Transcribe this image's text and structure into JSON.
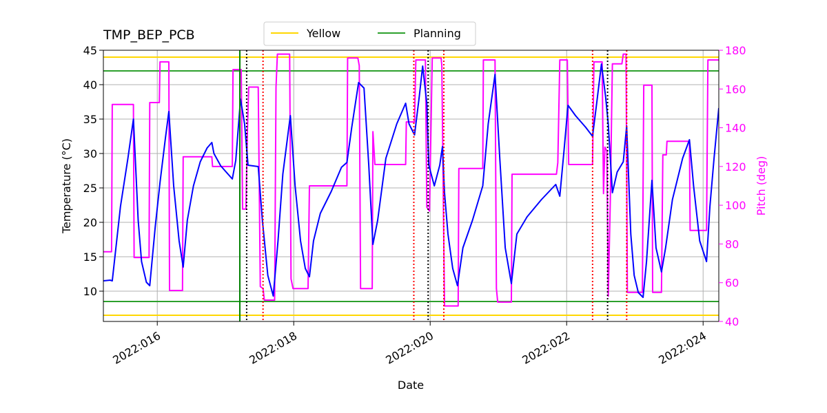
{
  "chart_data": {
    "type": "line",
    "title": "TMP_BEP_PCB",
    "xlabel": "Date",
    "ylabel": "Temperature (°C)",
    "y2label": "Pitch (deg)",
    "y2color": "#ff00ff",
    "xlim": [
      15.21,
      24.23
    ],
    "xticks": [
      {
        "value": 16,
        "label": "2022:016"
      },
      {
        "value": 18,
        "label": "2022:018"
      },
      {
        "value": 20,
        "label": "2022:020"
      },
      {
        "value": 22,
        "label": "2022:022"
      },
      {
        "value": 24,
        "label": "2022:024"
      }
    ],
    "ylim": [
      5.6,
      45
    ],
    "yticks": [
      10,
      15,
      20,
      25,
      30,
      35,
      40,
      45
    ],
    "y2lim": [
      40,
      180
    ],
    "y2ticks": [
      40,
      60,
      80,
      100,
      120,
      140,
      160,
      180
    ],
    "grid": true,
    "legend": "upper center",
    "limits": [
      {
        "name": "Yellow",
        "color": "#ffd700",
        "values": [
          6.5,
          44
        ]
      },
      {
        "name": "Planning",
        "color": "#2ca02c",
        "values": [
          8.5,
          42
        ]
      }
    ],
    "vlines": [
      {
        "x": 17.21,
        "color": "#008000",
        "style": "solid"
      },
      {
        "x": 17.31,
        "color": "#000000",
        "style": "dotted"
      },
      {
        "x": 19.97,
        "color": "#000000",
        "style": "dotted"
      },
      {
        "x": 22.6,
        "color": "#000000",
        "style": "dotted"
      },
      {
        "x": 17.55,
        "color": "#ff0000",
        "style": "dotted"
      },
      {
        "x": 19.76,
        "color": "#ff0000",
        "style": "dotted"
      },
      {
        "x": 20.2,
        "color": "#ff0000",
        "style": "dotted"
      },
      {
        "x": 22.38,
        "color": "#ff0000",
        "style": "dotted"
      },
      {
        "x": 22.88,
        "color": "#ff0000",
        "style": "dotted"
      }
    ],
    "series": [
      {
        "color": "#ff00ff",
        "axis": "y2",
        "x": [
          15.21,
          15.33,
          15.34,
          15.65,
          15.66,
          15.88,
          15.89,
          16.03,
          16.04,
          16.17,
          16.18,
          16.37,
          16.38,
          16.8,
          16.81,
          17.1,
          17.11,
          17.23,
          17.25,
          17.3,
          17.32,
          17.34,
          17.48,
          17.51,
          17.55,
          17.57,
          17.72,
          17.74,
          17.76,
          17.94,
          17.96,
          17.99,
          18.21,
          18.23,
          18.78,
          18.79,
          18.94,
          18.96,
          18.98,
          19.15,
          19.16,
          19.19,
          19.64,
          19.65,
          19.77,
          19.79,
          19.93,
          19.95,
          19.99,
          20.03,
          20.16,
          20.17,
          20.21,
          20.41,
          20.42,
          20.77,
          20.78,
          20.95,
          20.97,
          20.99,
          21.19,
          21.2,
          21.85,
          21.87,
          21.9,
          22.01,
          22.03,
          22.38,
          22.4,
          22.52,
          22.54,
          22.56,
          22.59,
          22.61,
          22.64,
          22.67,
          22.81,
          22.83,
          22.87,
          22.89,
          23.11,
          23.13,
          23.25,
          23.26,
          23.39,
          23.41,
          23.46,
          23.47,
          23.8,
          23.81,
          24.05,
          24.07,
          24.23
        ],
        "values": [
          76,
          76,
          152,
          152,
          73,
          73,
          153,
          153,
          174,
          174,
          56,
          56,
          125,
          125,
          120,
          120,
          170,
          170,
          98,
          98,
          137,
          161,
          161,
          58,
          57,
          51,
          51,
          161,
          178,
          178,
          62,
          57,
          57,
          110,
          110,
          176,
          176,
          172,
          57,
          57,
          138,
          121,
          121,
          143,
          143,
          175,
          175,
          99,
          97,
          176,
          176,
          172,
          48,
          48,
          119,
          119,
          175,
          175,
          57,
          50,
          50,
          116,
          116,
          122,
          175,
          175,
          121,
          121,
          174,
          174,
          106,
          130,
          128,
          53,
          103,
          173,
          173,
          178,
          178,
          55,
          55,
          162,
          162,
          55,
          55,
          126,
          126,
          133,
          133,
          87,
          87,
          175,
          175
        ]
      },
      {
        "color": "#0000ff",
        "x": [
          15.21,
          15.31,
          15.34,
          15.46,
          15.57,
          15.65,
          15.72,
          15.77,
          15.84,
          15.89,
          15.97,
          16.04,
          16.12,
          16.17,
          16.24,
          16.32,
          16.38,
          16.44,
          16.53,
          16.63,
          16.73,
          16.8,
          16.83,
          16.93,
          17.1,
          17.15,
          17.22,
          17.28,
          17.33,
          17.48,
          17.54,
          17.62,
          17.7,
          17.77,
          17.84,
          17.95,
          18.02,
          18.1,
          18.17,
          18.23,
          18.29,
          18.39,
          18.55,
          18.7,
          18.78,
          18.85,
          18.95,
          19.03,
          19.1,
          19.16,
          19.23,
          19.35,
          19.51,
          19.64,
          19.69,
          19.77,
          19.84,
          19.89,
          19.95,
          19.98,
          20.06,
          20.14,
          20.18,
          20.21,
          20.26,
          20.33,
          20.4,
          20.48,
          20.62,
          20.77,
          20.85,
          20.95,
          21.02,
          21.1,
          21.19,
          21.27,
          21.42,
          21.63,
          21.84,
          21.9,
          21.96,
          22.02,
          22.13,
          22.28,
          22.38,
          22.44,
          22.51,
          22.57,
          22.61,
          22.67,
          22.74,
          22.83,
          22.88,
          22.94,
          22.99,
          23.05,
          23.12,
          23.17,
          23.25,
          23.31,
          23.39,
          23.45,
          23.55,
          23.7,
          23.8,
          23.86,
          23.95,
          24.05,
          24.1,
          24.16,
          24.23
        ],
        "values": [
          11.5,
          11.6,
          11.5,
          22.3,
          29.3,
          35,
          20.3,
          14.3,
          11.3,
          10.8,
          19.3,
          25.8,
          32.3,
          36.1,
          25.3,
          17.3,
          13.5,
          20.3,
          25.3,
          28.8,
          30.8,
          31.6,
          30,
          28.2,
          26.3,
          29,
          37.9,
          34.3,
          28.3,
          28.1,
          20.3,
          12.3,
          9.3,
          17.3,
          27,
          35.5,
          25.3,
          17.3,
          13.3,
          12.1,
          17.3,
          21.3,
          24.5,
          28,
          28.7,
          33.8,
          40.3,
          39.5,
          28.3,
          16.8,
          20.3,
          29.3,
          34.3,
          37.3,
          34.3,
          32.7,
          38.3,
          42.7,
          37.3,
          28.3,
          25.3,
          28.3,
          31,
          24.3,
          18.3,
          13.3,
          10.8,
          16.3,
          20.3,
          25.3,
          34.3,
          41.5,
          29.3,
          16.3,
          11.1,
          18.3,
          20.8,
          23.3,
          25.5,
          23.8,
          30.3,
          37,
          35.5,
          33.8,
          32.5,
          37.3,
          43,
          38.3,
          34.3,
          24.3,
          27.3,
          28.8,
          34,
          18.3,
          12.3,
          9.8,
          9.1,
          14.3,
          26.1,
          16.3,
          12.8,
          16.3,
          23.3,
          29.3,
          32,
          25.3,
          17.3,
          14.3,
          22.3,
          29.3,
          36.6
        ]
      }
    ]
  }
}
